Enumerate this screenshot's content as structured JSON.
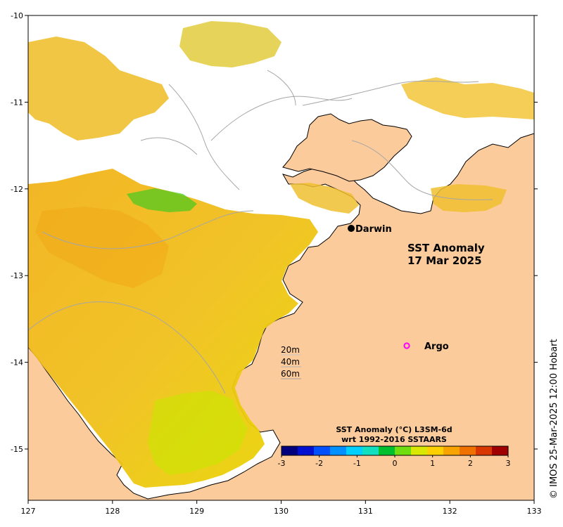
{
  "map": {
    "lon_ticks": [
      "127",
      "128",
      "129",
      "130",
      "131",
      "132",
      "133"
    ],
    "lat_ticks": [
      "-10",
      "-11",
      "-12",
      "-13",
      "-14",
      "-15"
    ],
    "land_color": "#fccb9c",
    "ocean_nodata_color": "#ffffff",
    "contour_color": "#a6a6a6"
  },
  "title": {
    "line1": "SST Anomaly",
    "line2": "17 Mar 2025"
  },
  "places": {
    "darwin": {
      "label": "Darwin",
      "marker": "black-filled-circle"
    },
    "argo": {
      "label": "Argo",
      "marker": "magenta-open-circle",
      "color": "#ff00ff"
    }
  },
  "depth_legend": {
    "items": [
      "20m",
      "40m",
      "60m"
    ]
  },
  "colorbar": {
    "title_line1": "SST Anomaly (°C) L3SM-6d",
    "title_line2": "wrt 1992-2016 SSTAARS",
    "ticks": [
      "-3",
      "-2",
      "-1",
      "0",
      "1",
      "2",
      "3"
    ],
    "range": [
      -3,
      3
    ],
    "colors": [
      "#00007f",
      "#0010d0",
      "#0050ff",
      "#0090ff",
      "#00d0ff",
      "#10e0c0",
      "#00c030",
      "#70dd10",
      "#d8e800",
      "#ffd000",
      "#f8a400",
      "#f07000",
      "#d83800",
      "#a00000"
    ]
  },
  "credit": "© IMOS 25-Mar-2025 12:00 Hobart"
}
